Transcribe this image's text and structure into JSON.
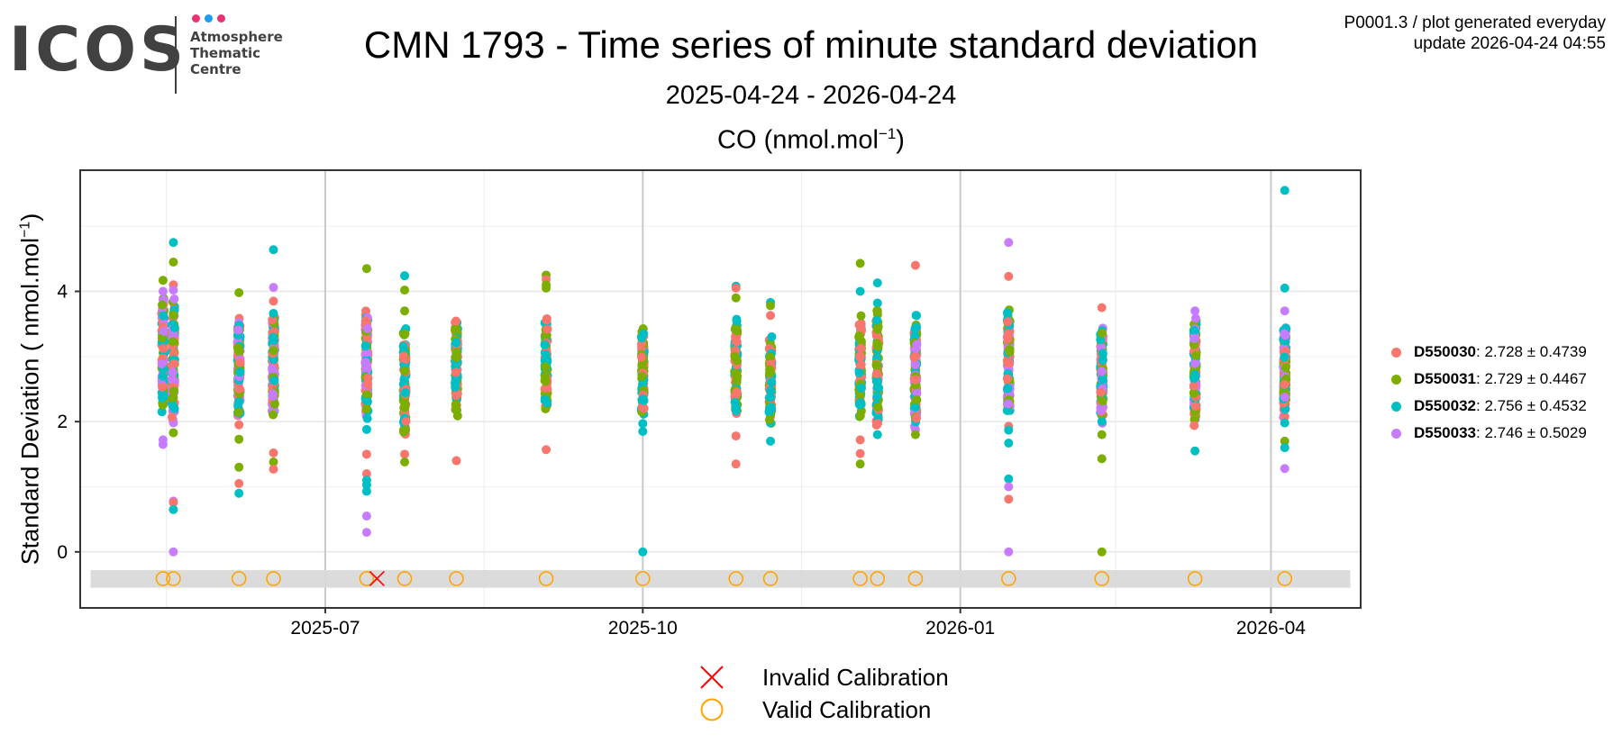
{
  "logo": {
    "text": "ICOS",
    "subtitle_lines": [
      "Atmosphere",
      "Thematic",
      "Centre"
    ],
    "dot_colors": [
      "#e8336e",
      "#1d9bf0",
      "#e8336e"
    ],
    "text_color": "#414141"
  },
  "header": {
    "title": "CMN 1793 - Time series of minute standard deviation",
    "subtitle": "2025-04-24 - 2026-04-24",
    "meta_line1": "P0001.3 / plot generated everyday",
    "meta_line2": "update  2026-04-24 04:55"
  },
  "chart_data": {
    "type": "scatter",
    "title": "CO (nmol.mol⁻¹)",
    "panel_title_main": "CO (nmol.mol",
    "panel_title_sup": "−1",
    "panel_title_end": ")",
    "xlabel": "",
    "ylabel_main": "Standard Deviation ( nmol.mol",
    "ylabel_sup": "−1",
    "ylabel_end": ")",
    "xlim": [
      "2025-04-21",
      "2026-04-27"
    ],
    "ylim": [
      -0.86,
      5.86
    ],
    "x_ticks": [
      {
        "date": "2025-07-01",
        "label": "2025-07"
      },
      {
        "date": "2025-10-01",
        "label": "2025-10"
      },
      {
        "date": "2026-01-01",
        "label": "2026-01"
      },
      {
        "date": "2026-04-01",
        "label": "2026-04"
      }
    ],
    "x_minor": [
      "2025-05-16",
      "2025-08-16",
      "2025-11-16",
      "2026-02-15"
    ],
    "y_ticks": [
      0,
      2,
      4
    ],
    "y_minor": [
      1,
      3,
      5
    ],
    "grid": true,
    "legend_position": "right",
    "calibration_band": {
      "ymin": -0.55,
      "ymax": -0.28,
      "color": "#d9d9d9",
      "xmin": "2025-04-24",
      "xmax": "2026-04-24"
    },
    "series": [
      {
        "name": "D550030",
        "color": "#f8766d",
        "mean": "2.728",
        "sd": "0.4739"
      },
      {
        "name": "D550031",
        "color": "#7cae00",
        "mean": "2.729",
        "sd": "0.4467"
      },
      {
        "name": "D550032",
        "color": "#00bfc4",
        "mean": "2.756",
        "sd": "0.4532"
      },
      {
        "name": "D550033",
        "color": "#c77cff",
        "mean": "2.746",
        "sd": "0.5029"
      }
    ],
    "sessions": [
      {
        "date": "2025-05-15",
        "series": [
          0,
          1,
          2,
          3
        ],
        "core": [
          1.95,
          4.0
        ],
        "outliers": [
          [
            1,
            4.17
          ],
          [
            3,
            4.0
          ],
          [
            3,
            1.72
          ],
          [
            3,
            1.65
          ]
        ]
      },
      {
        "date": "2025-05-18",
        "series": [
          0,
          1,
          2,
          3
        ],
        "core": [
          1.9,
          3.95
        ],
        "outliers": [
          [
            2,
            4.75
          ],
          [
            1,
            4.45
          ],
          [
            0,
            4.1
          ],
          [
            3,
            4.02
          ],
          [
            1,
            1.83
          ],
          [
            3,
            0.78
          ],
          [
            0,
            0.76
          ],
          [
            2,
            0.65
          ],
          [
            3,
            0.0
          ]
        ]
      },
      {
        "date": "2025-06-06",
        "series": [
          0,
          1,
          2,
          3
        ],
        "core": [
          1.95,
          3.65
        ],
        "outliers": [
          [
            1,
            3.98
          ],
          [
            0,
            1.95
          ],
          [
            1,
            1.73
          ],
          [
            1,
            1.3
          ],
          [
            0,
            1.05
          ],
          [
            2,
            0.9
          ]
        ]
      },
      {
        "date": "2025-06-16",
        "series": [
          0,
          1,
          2,
          3
        ],
        "core": [
          2.0,
          3.75
        ],
        "outliers": [
          [
            2,
            4.64
          ],
          [
            3,
            4.06
          ],
          [
            0,
            3.85
          ],
          [
            0,
            1.52
          ],
          [
            1,
            1.38
          ],
          [
            0,
            1.27
          ]
        ]
      },
      {
        "date": "2025-07-13",
        "series": [
          0,
          1,
          2,
          3
        ],
        "core": [
          1.95,
          3.85
        ],
        "outliers": [
          [
            1,
            4.35
          ],
          [
            2,
            1.88
          ],
          [
            0,
            1.5
          ],
          [
            0,
            1.2
          ],
          [
            2,
            1.1
          ],
          [
            2,
            1.03
          ],
          [
            2,
            0.93
          ],
          [
            3,
            0.55
          ],
          [
            3,
            0.3
          ]
        ]
      },
      {
        "date": "2025-07-24",
        "series": [
          0,
          1,
          2
        ],
        "core": [
          1.75,
          3.55
        ],
        "outliers": [
          [
            2,
            4.24
          ],
          [
            1,
            4.02
          ],
          [
            1,
            3.7
          ],
          [
            0,
            1.5
          ],
          [
            1,
            1.38
          ]
        ]
      },
      {
        "date": "2025-08-08",
        "series": [
          0,
          1,
          2
        ],
        "core": [
          1.93,
          3.65
        ],
        "outliers": [
          [
            0,
            1.4
          ]
        ]
      },
      {
        "date": "2025-09-03",
        "series": [
          0,
          1,
          2
        ],
        "core": [
          2.0,
          3.65
        ],
        "outliers": [
          [
            1,
            4.25
          ],
          [
            0,
            4.18
          ],
          [
            1,
            4.1
          ],
          [
            1,
            4.05
          ],
          [
            0,
            1.57
          ]
        ]
      },
      {
        "date": "2025-10-01",
        "series": [
          0,
          1,
          2
        ],
        "core": [
          2.05,
          3.55
        ],
        "outliers": [
          [
            2,
            1.97
          ],
          [
            2,
            1.85
          ],
          [
            2,
            0.0
          ]
        ]
      },
      {
        "date": "2025-10-28",
        "series": [
          0,
          1,
          2
        ],
        "core": [
          2.0,
          3.65
        ],
        "outliers": [
          [
            2,
            4.08
          ],
          [
            0,
            4.05
          ],
          [
            1,
            3.9
          ],
          [
            0,
            1.78
          ],
          [
            0,
            1.35
          ]
        ]
      },
      {
        "date": "2025-11-07",
        "series": [
          0,
          1,
          2
        ],
        "core": [
          1.85,
          3.4
        ],
        "outliers": [
          [
            2,
            3.83
          ],
          [
            1,
            3.78
          ],
          [
            0,
            3.63
          ],
          [
            2,
            1.7
          ]
        ]
      },
      {
        "date": "2025-12-03",
        "series": [
          0,
          1,
          2
        ],
        "core": [
          1.95,
          3.65
        ],
        "outliers": [
          [
            1,
            4.43
          ],
          [
            2,
            4.0
          ],
          [
            0,
            1.72
          ],
          [
            0,
            1.51
          ],
          [
            1,
            1.35
          ]
        ]
      },
      {
        "date": "2025-12-08",
        "series": [
          0,
          1,
          2
        ],
        "core": [
          1.85,
          3.8
        ],
        "outliers": [
          [
            2,
            4.13
          ],
          [
            2,
            3.82
          ],
          [
            1,
            3.7
          ],
          [
            2,
            1.8
          ]
        ]
      },
      {
        "date": "2025-12-19",
        "series": [
          0,
          1,
          2,
          3
        ],
        "core": [
          1.85,
          3.7
        ],
        "outliers": [
          [
            0,
            4.4
          ],
          [
            1,
            1.8
          ]
        ]
      },
      {
        "date": "2026-01-15",
        "series": [
          0,
          1,
          2,
          3
        ],
        "core": [
          2.0,
          3.78
        ],
        "outliers": [
          [
            3,
            4.75
          ],
          [
            0,
            4.23
          ],
          [
            0,
            1.93
          ],
          [
            2,
            1.87
          ],
          [
            2,
            1.67
          ],
          [
            2,
            1.12
          ],
          [
            3,
            1.0
          ],
          [
            0,
            0.81
          ],
          [
            3,
            0.0
          ]
        ]
      },
      {
        "date": "2026-02-11",
        "series": [
          0,
          1,
          2,
          3
        ],
        "core": [
          1.95,
          3.52
        ],
        "outliers": [
          [
            0,
            3.75
          ],
          [
            1,
            1.8
          ],
          [
            1,
            1.43
          ],
          [
            1,
            0.0
          ]
        ]
      },
      {
        "date": "2026-03-10",
        "series": [
          0,
          1,
          2,
          3
        ],
        "core": [
          1.9,
          3.7
        ],
        "outliers": [
          [
            3,
            3.7
          ],
          [
            2,
            1.55
          ]
        ]
      },
      {
        "date": "2026-04-05",
        "series": [
          0,
          1,
          2,
          3
        ],
        "core": [
          2.0,
          3.55
        ],
        "outliers": [
          [
            2,
            5.55
          ],
          [
            2,
            4.05
          ],
          [
            3,
            3.7
          ],
          [
            2,
            1.98
          ],
          [
            1,
            1.7
          ],
          [
            2,
            1.6
          ],
          [
            3,
            1.28
          ]
        ]
      }
    ],
    "valid_calibrations": [
      "2025-05-15",
      "2025-05-18",
      "2025-06-06",
      "2025-06-16",
      "2025-07-13",
      "2025-07-24",
      "2025-08-08",
      "2025-09-03",
      "2025-10-01",
      "2025-10-28",
      "2025-11-07",
      "2025-12-03",
      "2025-12-08",
      "2025-12-19",
      "2026-01-15",
      "2026-02-11",
      "2026-03-10",
      "2026-04-05"
    ],
    "invalid_calibrations": [
      "2025-07-16"
    ],
    "calibration_y": -0.41,
    "calibration_legend": [
      {
        "label": "Invalid Calibration",
        "symbol": "x",
        "color": "#ff0000"
      },
      {
        "label": "Valid Calibration",
        "symbol": "circle",
        "color": "#ffa500"
      }
    ]
  }
}
